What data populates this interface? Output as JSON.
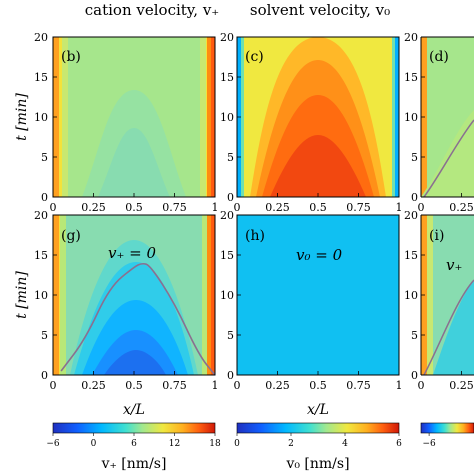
{
  "columns": [
    {
      "title": "cation velocity, v₊"
    },
    {
      "title": "solvent velocity, v₀"
    }
  ],
  "chart_data": [
    {
      "type": "heatmap",
      "panel": "(b)",
      "field": "cation velocity",
      "x": [
        0,
        1
      ],
      "y": [
        0,
        20
      ],
      "xticks": [
        "0",
        "0.25",
        "0.5",
        "0.75",
        "1"
      ],
      "yticks": [
        "0",
        "5",
        "10",
        "15",
        "20"
      ],
      "ylabel": "t [min]",
      "xlabel": "",
      "edge_value": 12,
      "center_value": 4.5
    },
    {
      "type": "heatmap",
      "panel": "(c)",
      "field": "solvent velocity",
      "x": [
        0,
        1
      ],
      "y": [
        0,
        20
      ],
      "xticks": [
        "0",
        "0.25",
        "0.5",
        "0.75",
        "1"
      ],
      "yticks": [
        "0",
        "5",
        "10",
        "15",
        "20"
      ],
      "edge_value": 0.5,
      "center_value": 6
    },
    {
      "type": "heatmap",
      "panel": "(d)",
      "partial": true,
      "x": [
        0,
        0.25
      ],
      "y": [
        0,
        20
      ],
      "xticks": [
        "0",
        "0.25"
      ],
      "yticks": [
        "0",
        "5",
        "10",
        "15",
        "20"
      ]
    },
    {
      "type": "heatmap",
      "panel": "(g)",
      "field": "cation velocity",
      "x": [
        0,
        1
      ],
      "y": [
        0,
        20
      ],
      "xticks": [
        "0",
        "0.25",
        "0.5",
        "0.75",
        "1"
      ],
      "yticks": [
        "0",
        "5",
        "10",
        "15",
        "20"
      ],
      "ylabel": "t [min]",
      "xlabel": "x/L",
      "annotation": "v₊ = 0",
      "zero_contour": {
        "x": [
          0.05,
          0.2,
          0.35,
          0.5,
          0.55,
          0.6,
          0.75,
          0.9,
          1
        ],
        "t": [
          0.5,
          4.5,
          11,
          13.5,
          14,
          13.7,
          9,
          2.5,
          0
        ]
      },
      "center_value": -5,
      "edge_value": 12
    },
    {
      "type": "heatmap",
      "panel": "(h)",
      "field": "solvent velocity",
      "x": [
        0,
        1
      ],
      "y": [
        0,
        20
      ],
      "xticks": [
        "0",
        "0.25",
        "0.5",
        "0.75",
        "1"
      ],
      "yticks": [
        "0",
        "5",
        "10",
        "15",
        "20"
      ],
      "xlabel": "x/L",
      "annotation": "v₀ = 0",
      "uniform_value": 0
    },
    {
      "type": "heatmap",
      "panel": "(i)",
      "partial": true,
      "x": [
        0,
        0.25
      ],
      "y": [
        0,
        20
      ],
      "xticks": [
        "0",
        "0.25"
      ],
      "yticks": [
        "0",
        "5",
        "10",
        "15",
        "20"
      ],
      "annotation": "v₊"
    }
  ],
  "colorbars": [
    {
      "label": "v₊ [nm/s]",
      "ticks": [
        "−6",
        "0",
        "6",
        "12",
        "18"
      ],
      "range": [
        -6,
        18
      ]
    },
    {
      "label": "v₀ [nm/s]",
      "ticks": [
        "0",
        "2",
        "4",
        "6"
      ],
      "range": [
        0,
        6
      ]
    },
    {
      "ticks": [
        "−6"
      ],
      "partial": true
    }
  ],
  "colors": {
    "low": "#1f3cff",
    "cyan": "#00c8ff",
    "green": "#80e0a0",
    "yellow": "#f5e040",
    "orange": "#ff8800",
    "red": "#e02800",
    "contour": "#8a7090"
  }
}
